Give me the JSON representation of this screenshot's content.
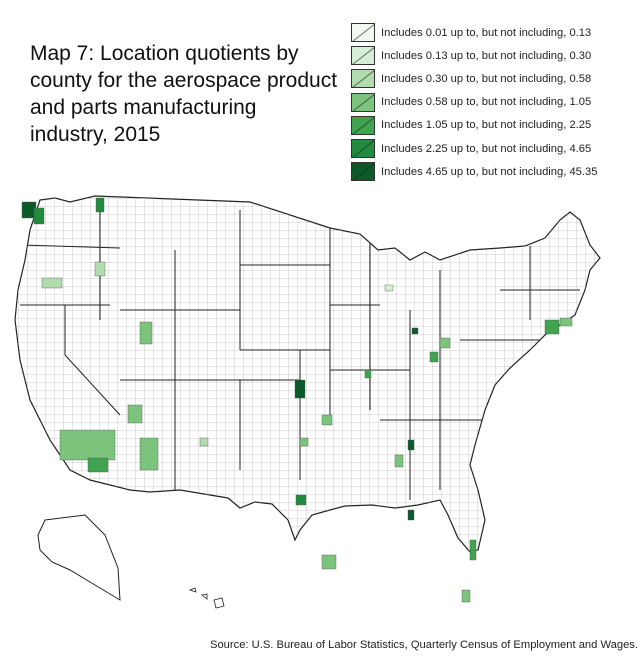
{
  "title": "Map 7: Location quotients by county for the aerospace product and parts manufacturing industry, 2015",
  "legend": [
    {
      "label": "Includes 0.01 up to, but not including, 0.13",
      "color": "#f2f9f2"
    },
    {
      "label": "Includes 0.13 up to, but not including, 0.30",
      "color": "#d6eed5"
    },
    {
      "label": "Includes 0.30 up to, but not including, 0.58",
      "color": "#b0dcae"
    },
    {
      "label": "Includes 0.58 up to, but not including, 1.05",
      "color": "#7cc47c"
    },
    {
      "label": "Includes 1.05 up to, but not including, 2.25",
      "color": "#3fa34f"
    },
    {
      "label": "Includes 2.25 up to, but not including, 4.65",
      "color": "#238b3d"
    },
    {
      "label": "Includes 4.65 up to, but not including, 45.35",
      "color": "#0b5a2a"
    }
  ],
  "source": "Source: U.S. Bureau of Labor Statistics, Quarterly Census of Employment and Wages."
}
